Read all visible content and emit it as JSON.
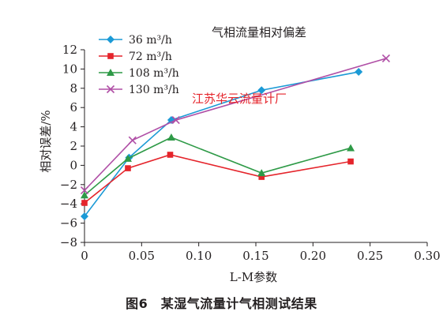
{
  "chart_data": {
    "type": "line",
    "title": "气相流量相对偏差",
    "xlabel": "L-M参数",
    "ylabel": "相对误差/%",
    "xlim": [
      0,
      0.3
    ],
    "ylim": [
      -8,
      12
    ],
    "x_ticks": [
      0,
      0.05,
      0.1,
      0.15,
      0.2,
      0.25,
      0.3
    ],
    "x_tick_labels": [
      "0",
      "0.05",
      "0.10",
      "0.15",
      "0.20",
      "0.25",
      "0.30"
    ],
    "y_ticks": [
      -8,
      -6,
      -4,
      -2,
      0,
      2,
      4,
      6,
      8,
      10,
      12
    ],
    "y_tick_labels": [
      "−8",
      "−6",
      "−4",
      "−2",
      "0",
      "2",
      "4",
      "6",
      "8",
      "10",
      "12"
    ],
    "grid": false,
    "legend_position": "top-left",
    "series": [
      {
        "name": "36 m³/h",
        "color": "#1b9ad6",
        "marker": "diamond",
        "points": [
          [
            0.0,
            -5.3
          ],
          [
            0.039,
            0.8
          ],
          [
            0.076,
            4.7
          ],
          [
            0.155,
            7.8
          ],
          [
            0.24,
            9.7
          ]
        ]
      },
      {
        "name": "72 m³/h",
        "color": "#e5242b",
        "marker": "square",
        "points": [
          [
            0.0,
            -3.9
          ],
          [
            0.038,
            -0.3
          ],
          [
            0.075,
            1.1
          ],
          [
            0.155,
            -1.2
          ],
          [
            0.233,
            0.4
          ]
        ]
      },
      {
        "name": "108 m³/h",
        "color": "#2e9a47",
        "marker": "triangle",
        "points": [
          [
            0.0,
            -3.1
          ],
          [
            0.038,
            0.7
          ],
          [
            0.076,
            2.9
          ],
          [
            0.155,
            -0.8
          ],
          [
            0.233,
            1.8
          ]
        ]
      },
      {
        "name": "130 m³/h",
        "color": "#b04fa6",
        "marker": "cross",
        "points": [
          [
            0.0,
            -2.6
          ],
          [
            0.042,
            2.6
          ],
          [
            0.08,
            4.7
          ],
          [
            0.264,
            11.1
          ]
        ]
      }
    ]
  },
  "watermark": "江苏华云流量计厂",
  "caption": "图6　某湿气流量计气相测试结果"
}
